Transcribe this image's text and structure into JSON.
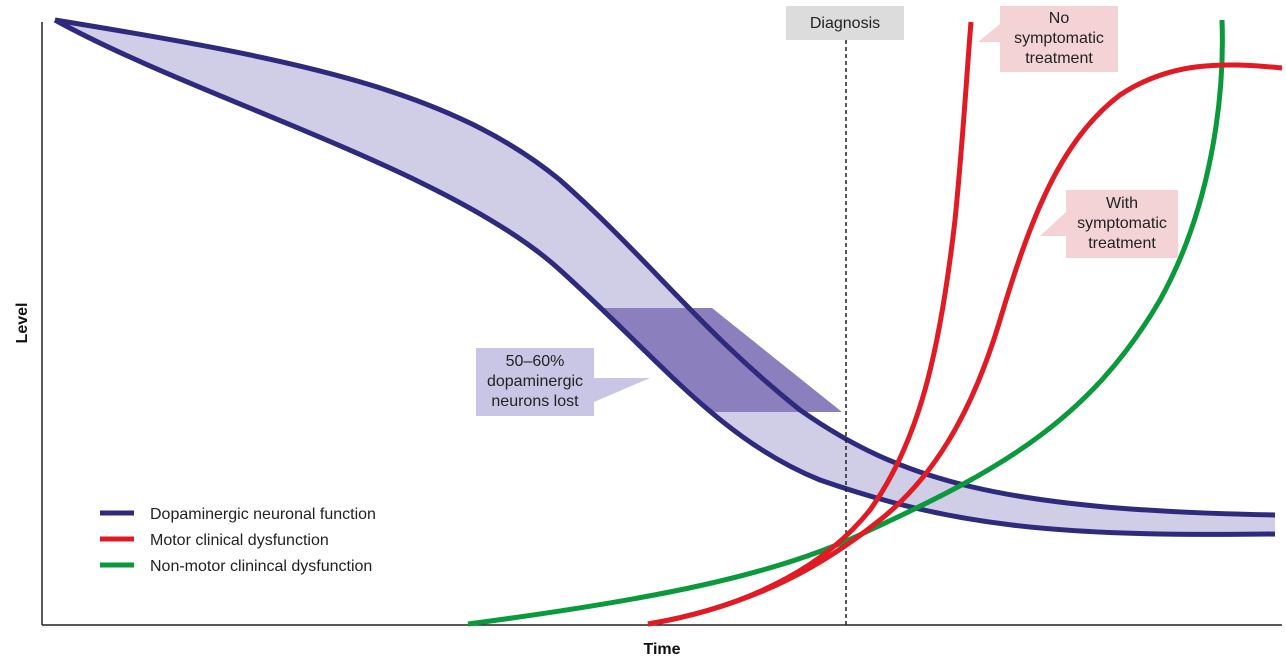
{
  "axes": {
    "xlabel": "Time",
    "ylabel": "Level"
  },
  "annotations": {
    "diagnosis": "Diagnosis",
    "no_treatment": [
      "No",
      "symptomatic",
      "treatment"
    ],
    "with_treatment": [
      "With",
      "symptomatic",
      "treatment"
    ],
    "neurons_lost": [
      "50–60%",
      "dopaminergic",
      "neurons lost"
    ]
  },
  "legend": {
    "items": [
      {
        "label": "Dopaminergic neuronal function",
        "color": "#2e2a7e"
      },
      {
        "label": "Motor clinical dysfunction",
        "color": "#e01b24"
      },
      {
        "label": "Non-motor clinincal dysfunction",
        "color": "#0a9a3c"
      }
    ]
  },
  "colors": {
    "band_fill": "#d0cde6",
    "highlight_fill": "#8c7fbd",
    "diagnosis_box": "#dcdcdc",
    "callout_pink": "#f3d3d6",
    "callout_lavender": "#c9c5e4"
  }
}
